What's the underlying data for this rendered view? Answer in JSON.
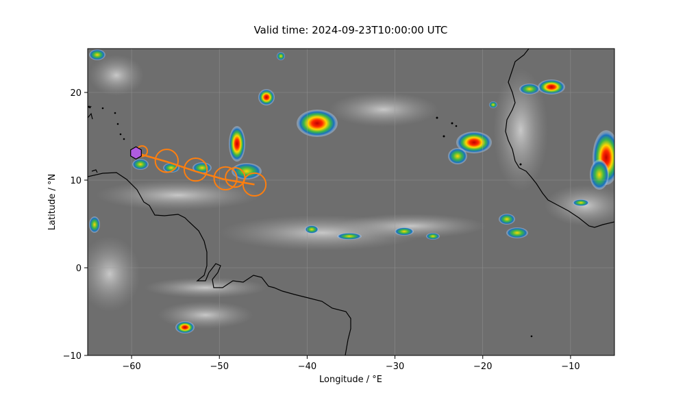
{
  "figure": {
    "title": "Valid time: 2024-09-23T10:00:00 UTC"
  },
  "chart_data": {
    "type": "map",
    "title": "Valid time: 2024-09-23T10:00:00 UTC",
    "xlabel": "Longitude / °E",
    "ylabel": "Latitude / °N",
    "xlim": [
      -65,
      -5
    ],
    "ylim": [
      -10,
      25
    ],
    "xticks": [
      -60,
      -50,
      -40,
      -30,
      -20,
      -10
    ],
    "yticks": [
      -10,
      0,
      10,
      20
    ],
    "xtick_labels": [
      "−60",
      "−50",
      "−40",
      "−30",
      "−20",
      "−10"
    ],
    "ytick_labels": [
      "−10",
      "0",
      "10",
      "20"
    ],
    "grid": true,
    "background": "infrared satellite imagery (grayscale with color-enhanced cold cloud tops)",
    "colors": {
      "track": "#ff7f0e",
      "current_marker": "#b05ce0",
      "coastline": "#000000",
      "grid": "#9a9a9a"
    },
    "current_position": {
      "lon": -59.5,
      "lat": 13.1,
      "marker": "hexagon"
    },
    "track": [
      {
        "lon": -59.5,
        "lat": 13.1
      },
      {
        "lon": -56.0,
        "lat": 12.1
      },
      {
        "lon": -52.7,
        "lat": 11.0
      },
      {
        "lon": -49.5,
        "lat": 10.1
      },
      {
        "lon": -46.0,
        "lat": 9.5
      }
    ],
    "uncertainty_circles": [
      {
        "lon": -58.8,
        "lat": 13.3,
        "radius_deg": 0.6
      },
      {
        "lon": -56.0,
        "lat": 12.2,
        "radius_deg": 1.3
      },
      {
        "lon": -52.7,
        "lat": 11.2,
        "radius_deg": 1.3
      },
      {
        "lon": -49.3,
        "lat": 10.2,
        "radius_deg": 1.3
      },
      {
        "lon": -48.2,
        "lat": 10.3,
        "radius_deg": 1.1
      },
      {
        "lon": -46.0,
        "lat": 9.5,
        "radius_deg": 1.3
      }
    ]
  }
}
